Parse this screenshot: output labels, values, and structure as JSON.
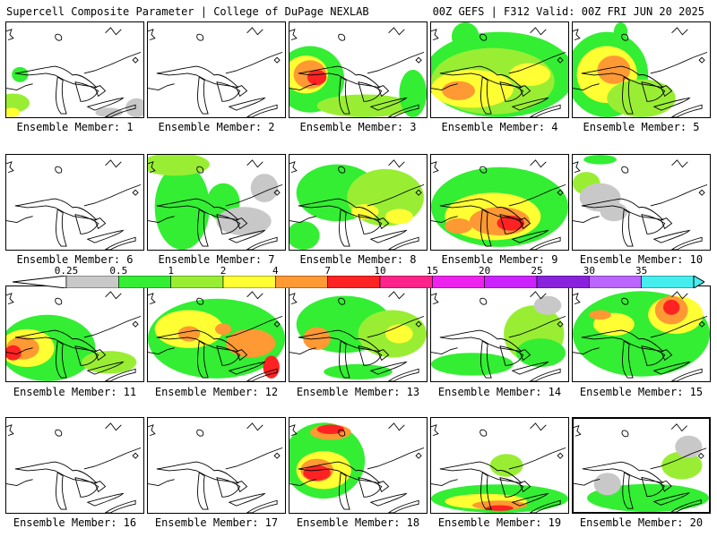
{
  "header": {
    "title": "Supercell Composite Parameter | College of DuPage NEXLAB",
    "run_info": "00Z GEFS | F312 Valid: 00Z FRI JUN 20 2025"
  },
  "colorbar": {
    "labels": [
      "0.25",
      "0.5",
      "1",
      "2",
      "4",
      "7",
      "10",
      "15",
      "20",
      "25",
      "30",
      "35"
    ],
    "colors": [
      "#c8c8c8",
      "#33ee33",
      "#99ee33",
      "#ffff33",
      "#ff9933",
      "#ff2222",
      "#ff2288",
      "#ee22ee",
      "#cc22ff",
      "#8822dd",
      "#bb66ff",
      "#44eeee"
    ]
  },
  "selected_member": 20,
  "members": [
    {
      "label": "Ensemble Member: 1",
      "blobs": [
        [
          "green",
          0.1,
          0.55,
          0.06,
          0.08
        ],
        [
          "lightgreen",
          0.05,
          0.85,
          0.12,
          0.1
        ],
        [
          "yellow",
          0.04,
          0.95,
          0.06,
          0.05
        ],
        [
          "gray",
          0.95,
          0.9,
          0.08,
          0.1
        ],
        [
          "gray",
          0.75,
          0.95,
          0.1,
          0.05
        ]
      ]
    },
    {
      "label": "Ensemble Member: 2",
      "blobs": []
    },
    {
      "label": "Ensemble Member: 3",
      "blobs": [
        [
          "green",
          0.15,
          0.6,
          0.25,
          0.35
        ],
        [
          "yellow",
          0.12,
          0.55,
          0.16,
          0.2
        ],
        [
          "orange",
          0.15,
          0.55,
          0.12,
          0.15
        ],
        [
          "red",
          0.2,
          0.58,
          0.07,
          0.08
        ],
        [
          "lightgreen",
          0.55,
          0.88,
          0.35,
          0.12
        ],
        [
          "green",
          0.9,
          0.75,
          0.1,
          0.25
        ]
      ]
    },
    {
      "label": "Ensemble Member: 4",
      "blobs": [
        [
          "green",
          0.5,
          0.55,
          0.55,
          0.45
        ],
        [
          "lightgreen",
          0.45,
          0.62,
          0.45,
          0.35
        ],
        [
          "yellow",
          0.3,
          0.7,
          0.3,
          0.2
        ],
        [
          "orange",
          0.2,
          0.72,
          0.12,
          0.1
        ],
        [
          "yellow",
          0.72,
          0.55,
          0.15,
          0.12
        ],
        [
          "green",
          0.25,
          0.15,
          0.1,
          0.15
        ]
      ]
    },
    {
      "label": "Ensemble Member: 5",
      "blobs": [
        [
          "green",
          0.25,
          0.55,
          0.3,
          0.45
        ],
        [
          "yellow",
          0.25,
          0.55,
          0.22,
          0.3
        ],
        [
          "orange",
          0.3,
          0.5,
          0.12,
          0.15
        ],
        [
          "green",
          0.35,
          0.1,
          0.05,
          0.1
        ],
        [
          "lightgreen",
          0.5,
          0.8,
          0.25,
          0.2
        ]
      ]
    },
    {
      "label": "Ensemble Member: 6",
      "blobs": []
    },
    {
      "label": "Ensemble Member: 7",
      "blobs": [
        [
          "green",
          0.25,
          0.55,
          0.2,
          0.45
        ],
        [
          "lightgreen",
          0.2,
          0.1,
          0.25,
          0.12
        ],
        [
          "green",
          0.55,
          0.5,
          0.12,
          0.2
        ],
        [
          "gray",
          0.7,
          0.7,
          0.2,
          0.15
        ],
        [
          "gray",
          0.85,
          0.35,
          0.1,
          0.15
        ]
      ]
    },
    {
      "label": "Ensemble Member: 8",
      "blobs": [
        [
          "green",
          0.35,
          0.4,
          0.3,
          0.3
        ],
        [
          "lightgreen",
          0.7,
          0.45,
          0.28,
          0.3
        ],
        [
          "yellow",
          0.55,
          0.6,
          0.1,
          0.08
        ],
        [
          "yellow",
          0.8,
          0.65,
          0.1,
          0.08
        ],
        [
          "green",
          0.1,
          0.85,
          0.12,
          0.15
        ]
      ]
    },
    {
      "label": "Ensemble Member: 9",
      "blobs": [
        [
          "green",
          0.5,
          0.55,
          0.5,
          0.42
        ],
        [
          "yellow",
          0.45,
          0.65,
          0.35,
          0.25
        ],
        [
          "orange",
          0.5,
          0.7,
          0.22,
          0.15
        ],
        [
          "red",
          0.58,
          0.72,
          0.1,
          0.08
        ],
        [
          "orange",
          0.2,
          0.75,
          0.1,
          0.08
        ]
      ]
    },
    {
      "label": "Ensemble Member: 10",
      "blobs": [
        [
          "lightgreen",
          0.1,
          0.3,
          0.1,
          0.12
        ],
        [
          "gray",
          0.2,
          0.45,
          0.15,
          0.15
        ],
        [
          "green",
          0.2,
          0.05,
          0.12,
          0.05
        ],
        [
          "gray",
          0.3,
          0.6,
          0.1,
          0.1
        ]
      ]
    },
    {
      "label": "Ensemble Member: 11",
      "blobs": [
        [
          "green",
          0.3,
          0.65,
          0.35,
          0.35
        ],
        [
          "yellow",
          0.15,
          0.65,
          0.2,
          0.2
        ],
        [
          "orange",
          0.12,
          0.65,
          0.12,
          0.12
        ],
        [
          "red",
          0.05,
          0.7,
          0.06,
          0.08
        ],
        [
          "lightgreen",
          0.75,
          0.8,
          0.2,
          0.12
        ]
      ]
    },
    {
      "label": "Ensemble Member: 12",
      "blobs": [
        [
          "green",
          0.5,
          0.55,
          0.5,
          0.42
        ],
        [
          "yellow",
          0.3,
          0.45,
          0.25,
          0.2
        ],
        [
          "orange",
          0.75,
          0.6,
          0.18,
          0.15
        ],
        [
          "red",
          0.9,
          0.85,
          0.06,
          0.12
        ],
        [
          "orange",
          0.3,
          0.5,
          0.08,
          0.08
        ],
        [
          "orange",
          0.55,
          0.45,
          0.06,
          0.06
        ]
      ]
    },
    {
      "label": "Ensemble Member: 13",
      "blobs": [
        [
          "green",
          0.4,
          0.4,
          0.35,
          0.3
        ],
        [
          "lightgreen",
          0.75,
          0.5,
          0.25,
          0.25
        ],
        [
          "yellow",
          0.8,
          0.5,
          0.1,
          0.1
        ],
        [
          "orange",
          0.2,
          0.55,
          0.1,
          0.12
        ],
        [
          "green",
          0.5,
          0.9,
          0.25,
          0.08
        ]
      ]
    },
    {
      "label": "Ensemble Member: 14",
      "blobs": [
        [
          "green",
          0.3,
          0.82,
          0.3,
          0.12
        ],
        [
          "lightgreen",
          0.75,
          0.5,
          0.22,
          0.3
        ],
        [
          "green",
          0.8,
          0.7,
          0.18,
          0.15
        ],
        [
          "gray",
          0.85,
          0.2,
          0.1,
          0.1
        ]
      ]
    },
    {
      "label": "Ensemble Member: 15",
      "blobs": [
        [
          "green",
          0.5,
          0.5,
          0.5,
          0.45
        ],
        [
          "yellow",
          0.75,
          0.3,
          0.2,
          0.2
        ],
        [
          "orange",
          0.72,
          0.25,
          0.12,
          0.15
        ],
        [
          "red",
          0.72,
          0.22,
          0.06,
          0.08
        ],
        [
          "yellow",
          0.3,
          0.4,
          0.15,
          0.12
        ],
        [
          "orange",
          0.2,
          0.3,
          0.08,
          0.05
        ]
      ]
    },
    {
      "label": "Ensemble Member: 16",
      "blobs": []
    },
    {
      "label": "Ensemble Member: 17",
      "blobs": []
    },
    {
      "label": "Ensemble Member: 18",
      "blobs": [
        [
          "green",
          0.25,
          0.45,
          0.3,
          0.4
        ],
        [
          "yellow",
          0.25,
          0.55,
          0.2,
          0.2
        ],
        [
          "orange",
          0.2,
          0.55,
          0.12,
          0.12
        ],
        [
          "red",
          0.2,
          0.58,
          0.1,
          0.08
        ],
        [
          "orange",
          0.3,
          0.15,
          0.15,
          0.08
        ],
        [
          "red",
          0.3,
          0.12,
          0.1,
          0.05
        ]
      ]
    },
    {
      "label": "Ensemble Member: 19",
      "blobs": [
        [
          "green",
          0.5,
          0.85,
          0.5,
          0.15
        ],
        [
          "yellow",
          0.4,
          0.88,
          0.3,
          0.08
        ],
        [
          "orange",
          0.5,
          0.92,
          0.2,
          0.05
        ],
        [
          "red",
          0.5,
          0.95,
          0.1,
          0.03
        ],
        [
          "lightgreen",
          0.55,
          0.5,
          0.12,
          0.12
        ]
      ]
    },
    {
      "label": "Ensemble Member: 20",
      "blobs": [
        [
          "green",
          0.55,
          0.85,
          0.45,
          0.15
        ],
        [
          "gray",
          0.25,
          0.7,
          0.1,
          0.12
        ],
        [
          "lightgreen",
          0.8,
          0.5,
          0.15,
          0.15
        ],
        [
          "gray",
          0.85,
          0.3,
          0.1,
          0.12
        ]
      ]
    }
  ]
}
